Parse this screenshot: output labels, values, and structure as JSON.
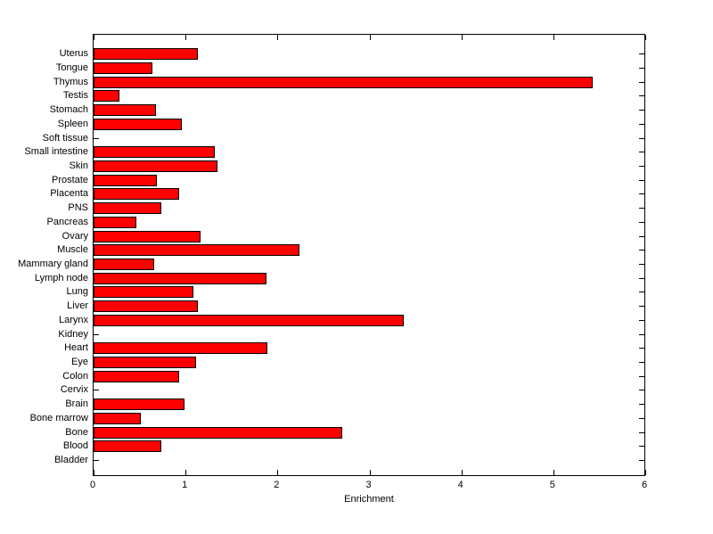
{
  "figure": {
    "background": "#ffffff"
  },
  "chart_data": {
    "type": "bar",
    "orientation": "horizontal",
    "title": "",
    "xlabel": "Enrichment",
    "ylabel": "",
    "xlim": [
      0,
      6
    ],
    "xticks": [
      "0",
      "1",
      "2",
      "3",
      "4",
      "5",
      "6"
    ],
    "grid": false,
    "legend": null,
    "bar_color": "#ff0000",
    "bar_edge_color": "#000000",
    "categories_order": "top-to-bottom",
    "categories": [
      "Uterus",
      "Tongue",
      "Thymus",
      "Testis",
      "Stomach",
      "Spleen",
      "Soft tissue",
      "Small intestine",
      "Skin",
      "Prostate",
      "Placenta",
      "PNS",
      "Pancreas",
      "Ovary",
      "Muscle",
      "Mammary gland",
      "Lymph node",
      "Lung",
      "Liver",
      "Larynx",
      "Kidney",
      "Heart",
      "Eye",
      "Colon",
      "Cervix",
      "Brain",
      "Bone marrow",
      "Bone",
      "Blood",
      "Bladder"
    ],
    "values": [
      1.13,
      0.64,
      5.43,
      0.28,
      0.68,
      0.96,
      0,
      1.32,
      1.35,
      0.69,
      0.93,
      0.74,
      0.47,
      1.16,
      2.24,
      0.66,
      1.88,
      1.09,
      1.13,
      3.37,
      0,
      1.89,
      1.11,
      0.93,
      0,
      0.99,
      0.51,
      2.7,
      0.74,
      0
    ]
  }
}
